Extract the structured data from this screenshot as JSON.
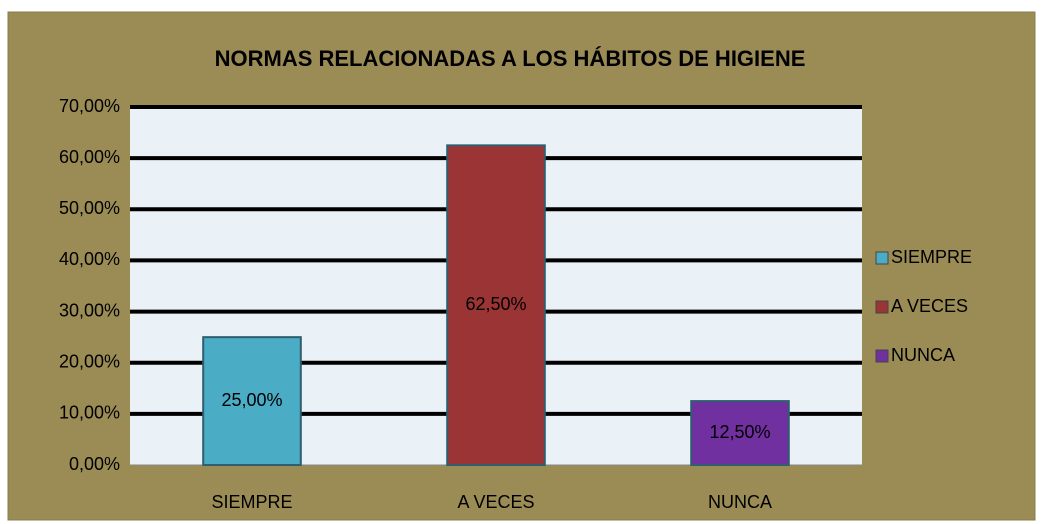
{
  "chart_data": {
    "type": "bar",
    "title": "NORMAS RELACIONADAS A LOS HÁBITOS DE HIGIENE",
    "categories": [
      "SIEMPRE",
      "A VECES",
      "NUNCA"
    ],
    "values": [
      25,
      62.5,
      12.5
    ],
    "value_labels": [
      "25,00%",
      "62,50%",
      "12,50%"
    ],
    "colors": [
      "#4bacc6",
      "#9b3535",
      "#7030a0"
    ],
    "ylim": [
      0,
      70
    ],
    "yticks": [
      {
        "value": 0,
        "label": "0,00%"
      },
      {
        "value": 10,
        "label": "10,00%"
      },
      {
        "value": 20,
        "label": "20,00%"
      },
      {
        "value": 30,
        "label": "30,00%"
      },
      {
        "value": 40,
        "label": "40,00%"
      },
      {
        "value": 50,
        "label": "50,00%"
      },
      {
        "value": 60,
        "label": "60,00%"
      },
      {
        "value": 70,
        "label": "70,00%"
      }
    ],
    "grid": true,
    "legend": "right"
  }
}
